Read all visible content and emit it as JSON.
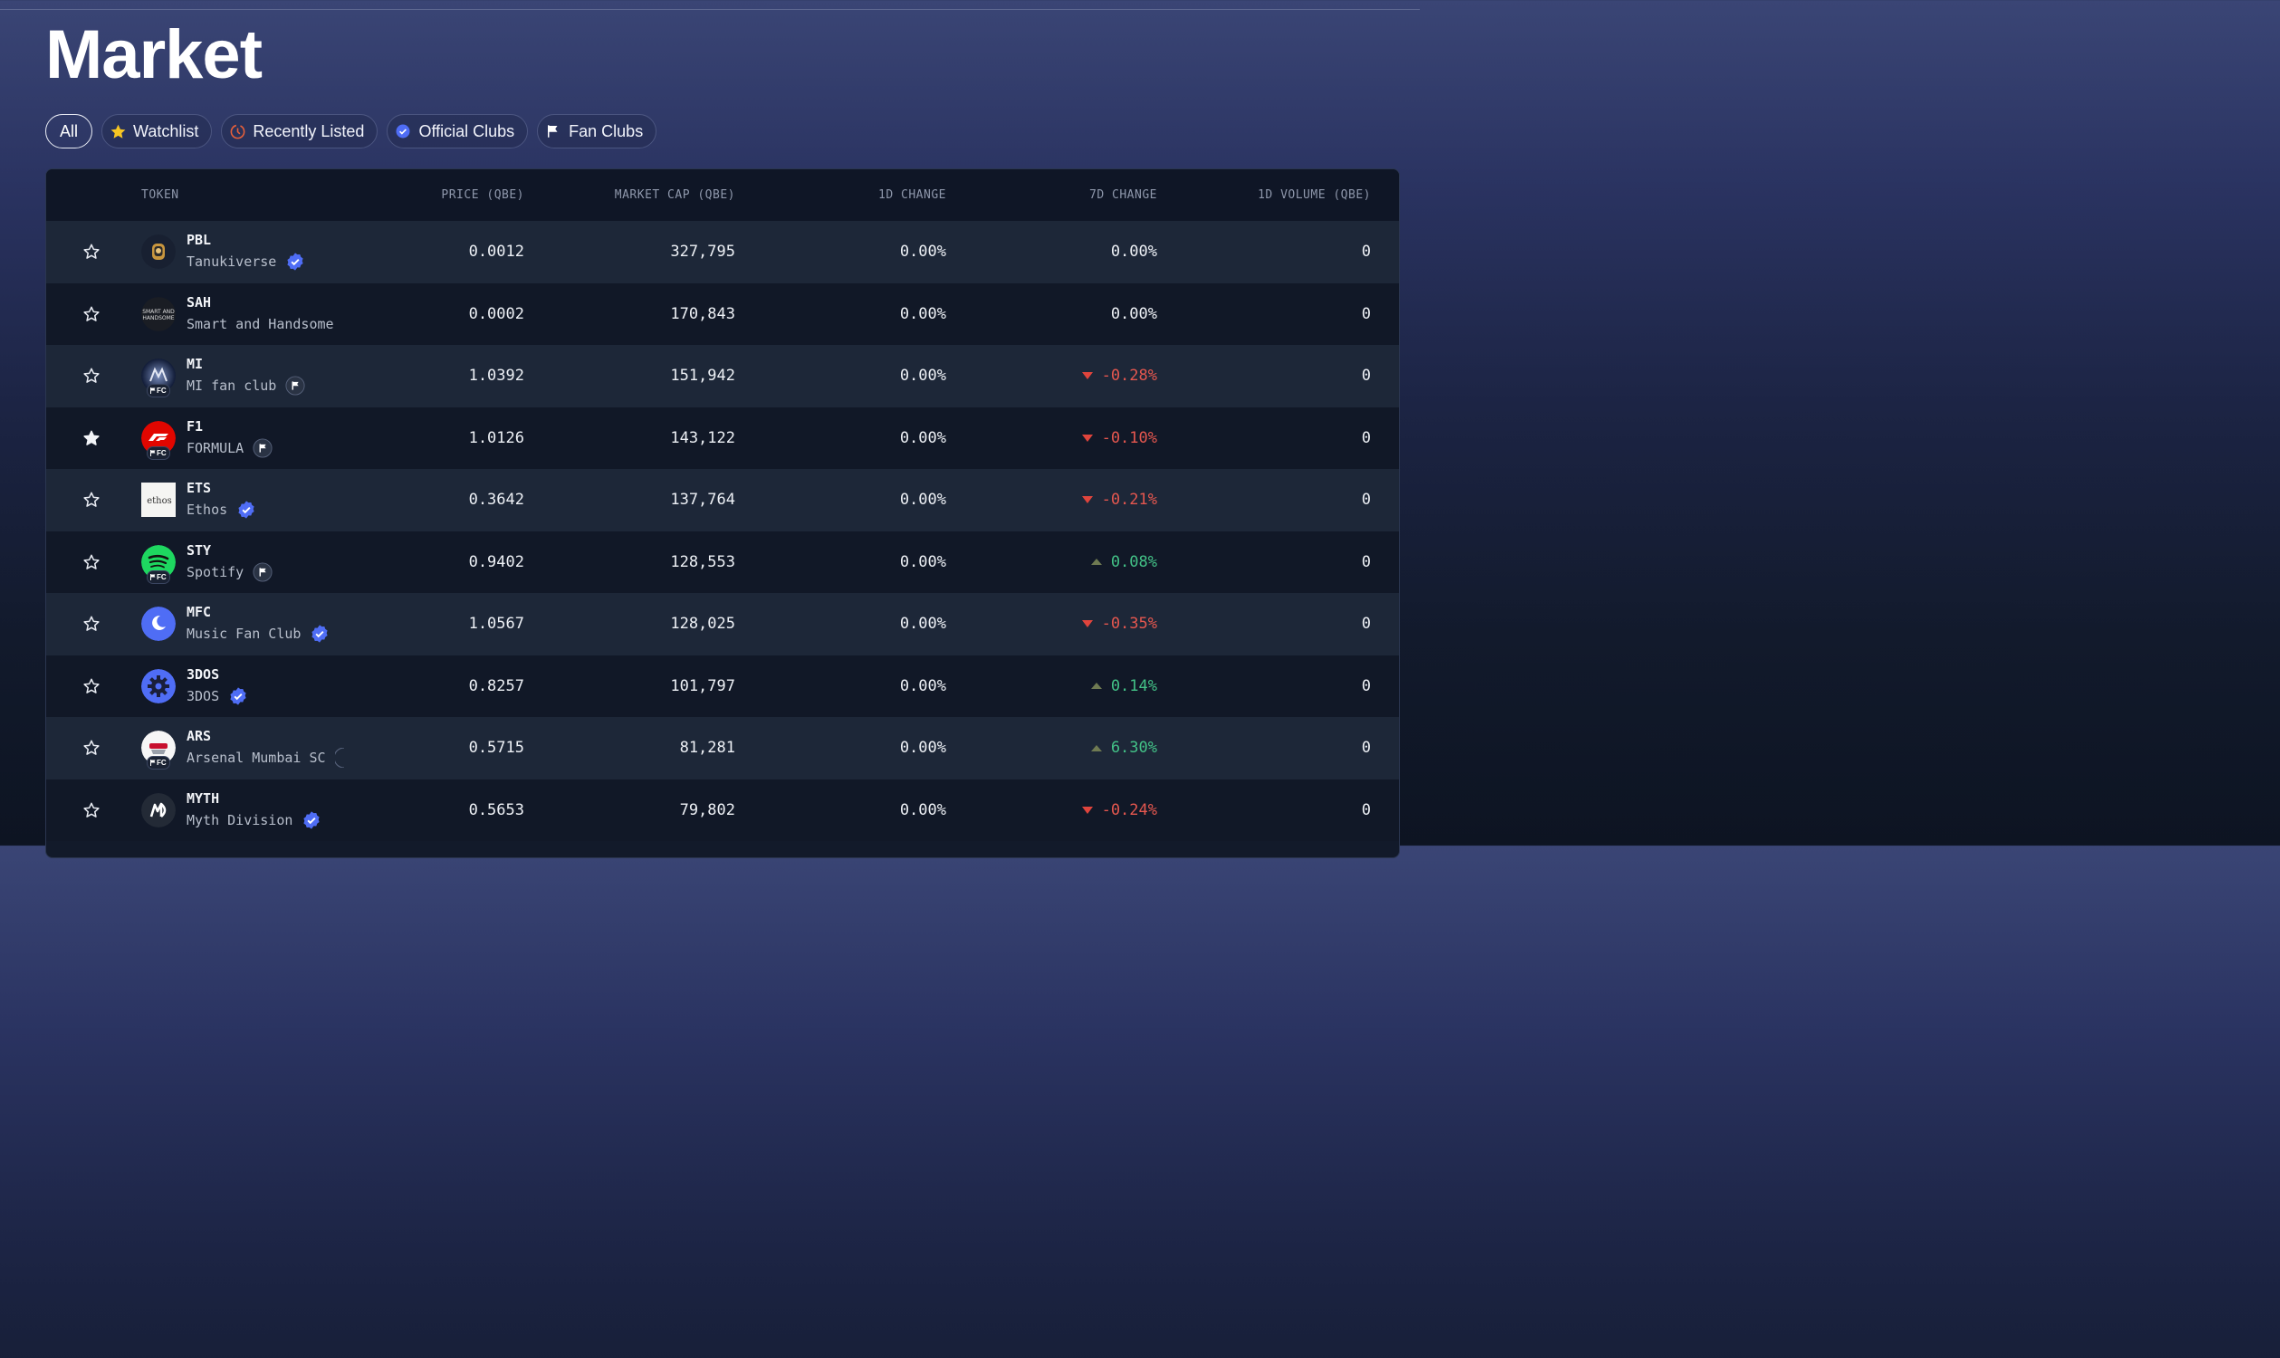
{
  "page": {
    "title": "Market"
  },
  "filters": [
    {
      "label": "All",
      "icon": "",
      "active": true
    },
    {
      "label": "Watchlist",
      "icon": "star-icon"
    },
    {
      "label": "Recently Listed",
      "icon": "clock-icon"
    },
    {
      "label": "Official Clubs",
      "icon": "verified-badge-icon"
    },
    {
      "label": "Fan Clubs",
      "icon": "flag-icon"
    }
  ],
  "table": {
    "headers": {
      "token": "TOKEN",
      "price": "PRICE (QBE)",
      "market_cap": "MARKET CAP (QBE)",
      "change_1d": "1D CHANGE",
      "change_7d": "7D CHANGE",
      "volume_1d": "1D VOLUME (QBE)"
    },
    "rows": [
      {
        "symbol": "PBL",
        "name": "Tanukiverse",
        "club": "official",
        "price": "0.0012",
        "market_cap": "327,795",
        "change_1d": "0.00%",
        "change_7d": "0.00%",
        "dir": "flat",
        "volume_1d": "0",
        "starred": false,
        "logo": "tanukiverse-logo"
      },
      {
        "symbol": "SAH",
        "name": "Smart and Handsome",
        "club": "none",
        "price": "0.0002",
        "market_cap": "170,843",
        "change_1d": "0.00%",
        "change_7d": "0.00%",
        "dir": "flat",
        "volume_1d": "0",
        "starred": false,
        "logo": "smart-and-handsome-logo",
        "logo_text": "SMART AND HANDSOME"
      },
      {
        "symbol": "MI",
        "name": "MI fan club",
        "club": "fan",
        "price": "1.0392",
        "market_cap": "151,942",
        "change_1d": "0.00%",
        "change_7d": "-0.28%",
        "dir": "down",
        "volume_1d": "0",
        "starred": false,
        "logo": "mi-fan-club-logo"
      },
      {
        "symbol": "F1",
        "name": "FORMULA",
        "club": "fan",
        "price": "1.0126",
        "market_cap": "143,122",
        "change_1d": "0.00%",
        "change_7d": "-0.10%",
        "dir": "down",
        "volume_1d": "0",
        "starred": true,
        "logo": "formula1-logo"
      },
      {
        "symbol": "ETS",
        "name": "Ethos",
        "club": "official",
        "price": "0.3642",
        "market_cap": "137,764",
        "change_1d": "0.00%",
        "change_7d": "-0.21%",
        "dir": "down",
        "volume_1d": "0",
        "starred": false,
        "logo": "ethos-logo",
        "logo_text": "ethos"
      },
      {
        "symbol": "STY",
        "name": "Spotify",
        "club": "fan",
        "price": "0.9402",
        "market_cap": "128,553",
        "change_1d": "0.00%",
        "change_7d": "0.08%",
        "dir": "up",
        "volume_1d": "0",
        "starred": false,
        "logo": "spotify-logo"
      },
      {
        "symbol": "MFC",
        "name": "Music Fan Club",
        "club": "official",
        "price": "1.0567",
        "market_cap": "128,025",
        "change_1d": "0.00%",
        "change_7d": "-0.35%",
        "dir": "down",
        "volume_1d": "0",
        "starred": false,
        "logo": "music-fan-club-logo"
      },
      {
        "symbol": "3DOS",
        "name": "3DOS",
        "club": "official",
        "price": "0.8257",
        "market_cap": "101,797",
        "change_1d": "0.00%",
        "change_7d": "0.14%",
        "dir": "up",
        "volume_1d": "0",
        "starred": false,
        "logo": "3dos-gear-logo"
      },
      {
        "symbol": "ARS",
        "name": "Arsenal Mumbai SC",
        "club": "fan-cut",
        "price": "0.5715",
        "market_cap": "81,281",
        "change_1d": "0.00%",
        "change_7d": "6.30%",
        "dir": "up",
        "volume_1d": "0",
        "starred": false,
        "logo": "arsenal-logo"
      },
      {
        "symbol": "MYTH",
        "name": "Myth Division",
        "club": "official",
        "price": "0.5653",
        "market_cap": "79,802",
        "change_1d": "0.00%",
        "change_7d": "-0.24%",
        "dir": "down",
        "volume_1d": "0",
        "starred": false,
        "logo": "myth-division-logo",
        "logo_text": "MD"
      }
    ],
    "fc_badge_label": "FC"
  },
  "colors": {
    "positive": "#43c287",
    "negative": "#e5574f",
    "verified": "#4f6df5"
  }
}
